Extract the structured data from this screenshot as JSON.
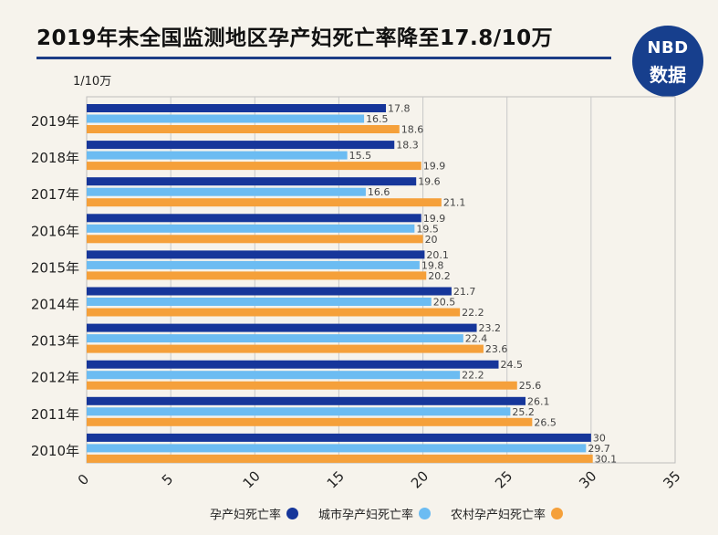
{
  "header": {
    "title": "2019年末全国监测地区孕产妇死亡率降至17.8/10万"
  },
  "logo": {
    "top": "NBD",
    "bottom": "数据"
  },
  "chart_data": {
    "type": "bar",
    "orientation": "horizontal",
    "unit_label": "1/10万",
    "categories": [
      "2019年",
      "2018年",
      "2017年",
      "2016年",
      "2015年",
      "2014年",
      "2013年",
      "2012年",
      "2011年",
      "2010年"
    ],
    "series": [
      {
        "name": "孕产妇死亡率",
        "color": "#16369a",
        "values": [
          17.8,
          18.3,
          19.6,
          19.9,
          20.1,
          21.7,
          23.2,
          24.5,
          26.1,
          30
        ]
      },
      {
        "name": "城市孕产妇死亡率",
        "color": "#6cbcf2",
        "values": [
          16.5,
          15.5,
          16.6,
          19.5,
          19.8,
          20.5,
          22.4,
          22.2,
          25.2,
          29.7
        ]
      },
      {
        "name": "农村孕产妇死亡率",
        "color": "#f5a03a",
        "values": [
          18.6,
          19.9,
          21.1,
          20,
          20.2,
          22.2,
          23.6,
          25.6,
          26.5,
          30.1
        ]
      }
    ],
    "value_labels": [
      [
        "17.8",
        "16.5",
        "18.6"
      ],
      [
        "18.3",
        "15.5",
        "19.9"
      ],
      [
        "19.6",
        "16.6",
        "21.1"
      ],
      [
        "19.9",
        "19.5",
        "20"
      ],
      [
        "20.1",
        "19.8",
        "20.2"
      ],
      [
        "21.7",
        "20.5",
        "22.2"
      ],
      [
        "23.2",
        "22.4",
        "23.6"
      ],
      [
        "24.5",
        "22.2",
        "25.6"
      ],
      [
        "26.1",
        "25.2",
        "26.5"
      ],
      [
        "30",
        "29.7",
        "30.1"
      ]
    ],
    "xlim": [
      0,
      35
    ],
    "xticks": [
      "0",
      "5",
      "10",
      "15",
      "20",
      "25",
      "30",
      "35"
    ],
    "grid": true,
    "legend_position": "bottom"
  }
}
